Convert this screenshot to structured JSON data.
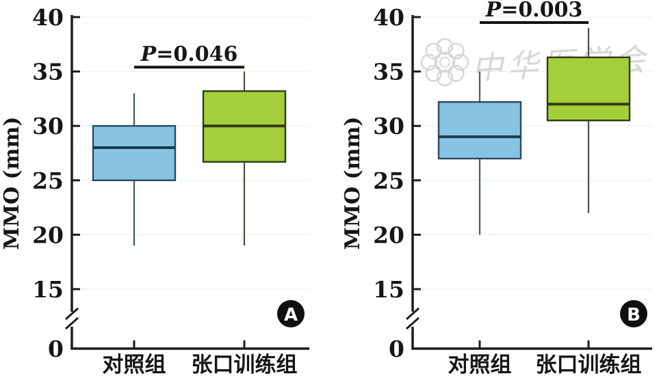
{
  "figure": {
    "background": "#ffffff",
    "watermark": {
      "text": "中华医学会",
      "applies_to_panel": "B",
      "color": "#d7d7d7"
    }
  },
  "chart_data": [
    {
      "type": "box",
      "panel_label": "A",
      "ylabel": "MMO (mm)",
      "y_ticks": [
        0,
        15,
        20,
        25,
        30,
        35,
        40
      ],
      "ylim_display": [
        15,
        40
      ],
      "axis_break": true,
      "grid": "faint-horizontal",
      "categories": [
        "对照组",
        "张口训练组"
      ],
      "significance": {
        "label": "P=0.046",
        "line_y": 35.4
      },
      "series": [
        {
          "name": "对照组",
          "color": "#87C4E3",
          "border": "#2B4A62",
          "median_color": "#1D3A4E",
          "whisker_color": "#3E5A6B",
          "whisker_low": 19,
          "q1": 25,
          "median": 28,
          "q3": 30,
          "whisker_high": 33
        },
        {
          "name": "张口训练组",
          "color": "#A5CF3A",
          "border": "#2F3B17",
          "median_color": "#2F3B17",
          "whisker_color": "#47523B",
          "whisker_low": 19,
          "q1": 26.7,
          "median": 30,
          "q3": 33.2,
          "whisker_high": 35
        }
      ]
    },
    {
      "type": "box",
      "panel_label": "B",
      "ylabel": "MMO (mm)",
      "y_ticks": [
        0,
        15,
        20,
        25,
        30,
        35,
        40
      ],
      "ylim_display": [
        15,
        40
      ],
      "axis_break": true,
      "grid": "faint-horizontal",
      "categories": [
        "对照组",
        "张口训练组"
      ],
      "significance": {
        "label": "P=0.003",
        "line_y": 39.5
      },
      "series": [
        {
          "name": "对照组",
          "color": "#87C4E3",
          "border": "#2B4A62",
          "median_color": "#1D3A4E",
          "whisker_color": "#3E5A6B",
          "whisker_low": 20,
          "q1": 27,
          "median": 29,
          "q3": 32.2,
          "whisker_high": 35
        },
        {
          "name": "张口训练组",
          "color": "#A5CF3A",
          "border": "#2F3B17",
          "median_color": "#2F3B17",
          "whisker_color": "#47523B",
          "whisker_low": 22,
          "q1": 30.5,
          "median": 32,
          "q3": 36.3,
          "whisker_high": 39
        }
      ]
    }
  ]
}
